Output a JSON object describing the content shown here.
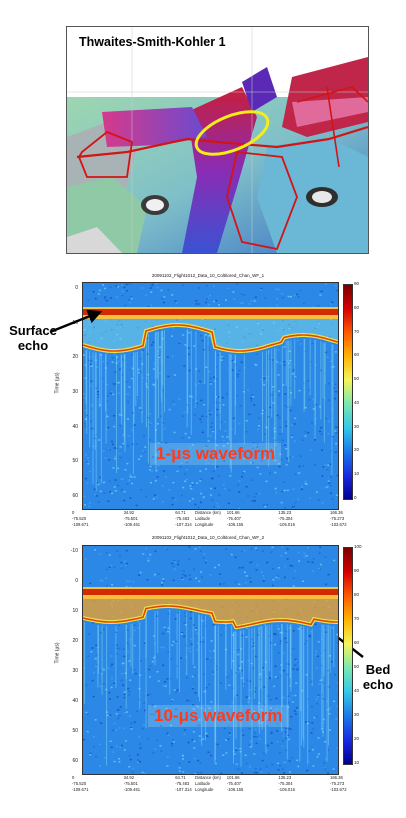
{
  "map": {
    "title": "Thwaites-Smith-Kohler 1"
  },
  "radargram_top": {
    "title": "20091102_Flight1012_Data_10_Coltitored_Chan_WF_1",
    "waveform_label": "1-μs waveform",
    "y_label": "Time (µs)",
    "y_ticks": [
      "0",
      "10",
      "20",
      "30",
      "40",
      "50",
      "60"
    ],
    "colorbar_ticks": [
      "90",
      "80",
      "70",
      "60",
      "50",
      "40",
      "30",
      "20",
      "10",
      "0"
    ]
  },
  "radargram_bottom": {
    "title": "20091102_Flight1012_Data_10_Coltitored_Chan_WF_2",
    "waveform_label": "10-μs waveform",
    "y_label": "Time (µs)",
    "y_ticks": [
      "-10",
      "0",
      "10",
      "20",
      "30",
      "40",
      "50",
      "60"
    ],
    "colorbar_ticks": [
      "100",
      "90",
      "80",
      "70",
      "60",
      "50",
      "40",
      "30",
      "20",
      "10"
    ]
  },
  "x_axis": {
    "distance_label": "Distance (km)",
    "latitude_label": "Latitude",
    "longitude_label": "Longitude",
    "distance": [
      "0",
      "34.92",
      "64.71",
      "101.66",
      "135.23",
      "166.36"
    ],
    "latitude": [
      "-75.520",
      "-75.501",
      "-75.463",
      "-75.407",
      "-75.304",
      "-75.273"
    ],
    "longitude": [
      "-109.671",
      "-109.461",
      "-107.314",
      "-106.155",
      "-105.015",
      "-103.672"
    ]
  },
  "callouts": {
    "surface_line1": "Surface",
    "surface_line2": "echo",
    "bed_line1": "Bed",
    "bed_line2": "echo"
  },
  "colors": {
    "flight_line": "#d21414",
    "highlight_ellipse": "#f6ec1a",
    "label_red": "#ff3a1a"
  }
}
